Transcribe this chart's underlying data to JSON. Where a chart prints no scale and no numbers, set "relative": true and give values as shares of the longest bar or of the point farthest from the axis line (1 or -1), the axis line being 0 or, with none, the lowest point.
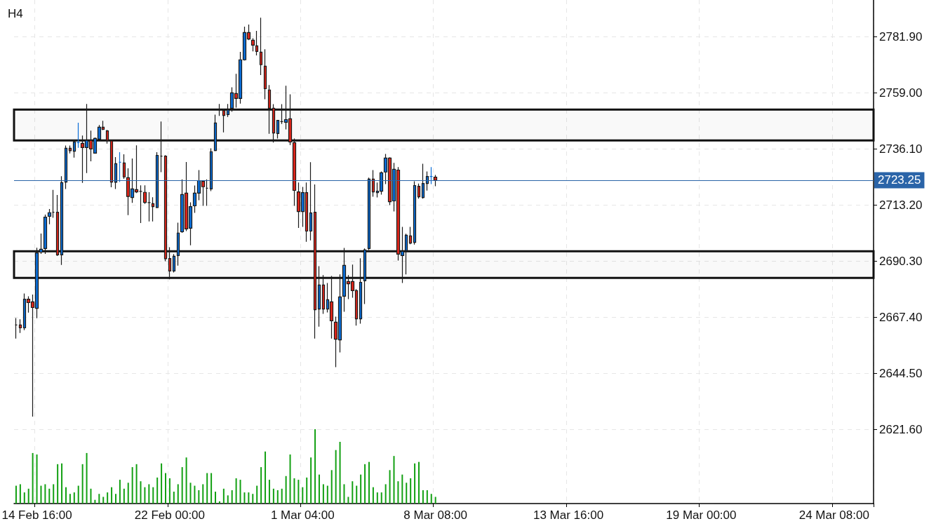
{
  "chart_data": [
    {
      "type": "candlestick",
      "title": "H4",
      "categories": [
        null,
        null,
        null,
        null,
        null,
        "14 Feb 16:00",
        null,
        null,
        null,
        null,
        null,
        null,
        null,
        null,
        null,
        null,
        null,
        null,
        null,
        null,
        null,
        null,
        null,
        null,
        null,
        null,
        null,
        null,
        null,
        null,
        null,
        null,
        null,
        null,
        null,
        null,
        null,
        "22 Feb 00:00",
        null,
        null,
        null,
        null,
        null,
        null,
        null,
        null,
        null,
        null,
        null,
        null,
        null,
        null,
        null,
        null,
        null,
        null,
        null,
        null,
        null,
        null,
        null,
        null,
        null,
        null,
        null,
        null,
        null,
        null,
        null,
        "1 Mar 04:00",
        null,
        null,
        null,
        null,
        null,
        null,
        null,
        null,
        null,
        null,
        null,
        null,
        null,
        null,
        null,
        null,
        null,
        null,
        null,
        null,
        null,
        null,
        null,
        null,
        null,
        null,
        null,
        null,
        null,
        null,
        null,
        "8 Mar 08:00",
        null,
        null,
        null,
        null,
        null,
        null,
        null,
        null,
        null,
        null,
        null,
        null,
        null,
        null,
        null,
        null,
        null,
        null,
        null,
        null,
        null,
        null,
        null,
        null,
        null,
        null,
        null,
        null,
        null,
        null,
        null,
        "13 Mar 16:00",
        null,
        null,
        null,
        null,
        null,
        null,
        null,
        null,
        null,
        null,
        null,
        null,
        null,
        null,
        null,
        null,
        null,
        null,
        null,
        null,
        null,
        null,
        null,
        null,
        null,
        null,
        null,
        null,
        null,
        null,
        null,
        "19 Mar 00:00",
        null,
        null,
        null,
        null,
        null,
        null,
        null,
        null,
        null,
        null,
        null,
        null,
        null,
        null,
        null,
        null,
        null,
        null,
        null,
        null,
        null,
        null,
        null,
        null,
        null,
        null,
        null,
        null,
        null,
        null,
        null,
        "24 Mar 08:00",
        null,
        null,
        null,
        null,
        null,
        null,
        null,
        null,
        null
      ],
      "ohlc": [
        [
          2664.2,
          2667.0,
          2658.6,
          2664.2
        ],
        [
          2664.2,
          2666.5,
          2660.9,
          2663.0
        ],
        [
          2663.0,
          2677.0,
          2662.1,
          2674.7
        ],
        [
          2674.7,
          2675.9,
          2669.2,
          2673.3
        ],
        [
          2673.6,
          2676.6,
          2626.8,
          2671.3
        ],
        [
          2671.0,
          2695.7,
          2666.9,
          2693.6
        ],
        [
          2693.9,
          2701.5,
          2693.2,
          2695.1
        ],
        [
          2695.4,
          2709.2,
          2693.2,
          2708.2
        ],
        [
          2708.5,
          2711.5,
          2705.3,
          2710.0
        ],
        [
          2710.2,
          2719.3,
          2707.9,
          2710.2
        ],
        [
          2710.2,
          2717.2,
          2692.3,
          2692.8
        ],
        [
          2692.8,
          2724.9,
          2688.7,
          2722.3
        ],
        [
          2722.5,
          2737.4,
          2719.7,
          2736.3
        ],
        [
          2736.3,
          2737.4,
          2734.2,
          2735.3
        ],
        [
          2735.1,
          2739.5,
          2732.5,
          2738.9
        ],
        [
          2738.6,
          2746.7,
          2736.5,
          2738.6
        ],
        [
          2738.3,
          2741.5,
          2722.2,
          2736.6
        ],
        [
          2736.6,
          2754.4,
          2726.2,
          2739.5
        ],
        [
          2739.5,
          2743.5,
          2731.0,
          2736.0
        ],
        [
          2734.3,
          2740.7,
          2734.3,
          2740.3
        ],
        [
          2740.0,
          2745.8,
          2740.0,
          2744.9
        ],
        [
          2744.9,
          2747.5,
          2743.7,
          2744.0
        ],
        [
          2743.4,
          2743.8,
          2738.2,
          2739.5
        ],
        [
          2739.3,
          2739.5,
          2720.4,
          2722.5
        ],
        [
          2722.4,
          2732.7,
          2719.7,
          2730.0
        ],
        [
          2730.6,
          2734.7,
          2722.5,
          2730.6
        ],
        [
          2730.3,
          2733.8,
          2723.8,
          2724.6
        ],
        [
          2724.3,
          2728.1,
          2709.0,
          2716.6
        ],
        [
          2716.2,
          2732.1,
          2714.0,
          2719.7
        ],
        [
          2719.4,
          2737.5,
          2718.0,
          2718.5
        ],
        [
          2718.7,
          2721.2,
          2705.8,
          2718.7
        ],
        [
          2718.3,
          2721.2,
          2713.6,
          2714.2
        ],
        [
          2714.1,
          2718.4,
          2706.4,
          2714.1
        ],
        [
          2713.7,
          2716.3,
          2706.4,
          2712.5
        ],
        [
          2712.1,
          2734.7,
          2711.9,
          2733.4
        ],
        [
          2733.1,
          2747.2,
          2726.5,
          2733.1
        ],
        [
          2733.1,
          2733.5,
          2690.2,
          2691.2
        ],
        [
          2691.3,
          2695.9,
          2682.8,
          2686.2
        ],
        [
          2686.2,
          2693.1,
          2685.6,
          2692.2
        ],
        [
          2692.5,
          2705.9,
          2688.4,
          2701.7
        ],
        [
          2702.2,
          2723.6,
          2701.8,
          2717.4
        ],
        [
          2718.0,
          2730.7,
          2702.5,
          2703.4
        ],
        [
          2703.7,
          2714.2,
          2696.7,
          2712.5
        ],
        [
          2712.8,
          2721.1,
          2709.9,
          2718.0
        ],
        [
          2718.0,
          2727.4,
          2715.1,
          2723.1
        ],
        [
          2722.8,
          2723.1,
          2712.8,
          2720.6
        ],
        [
          2720.0,
          2723.6,
          2712.8,
          2720.0
        ],
        [
          2719.7,
          2736.3,
          2718.8,
          2734.9
        ],
        [
          2735.4,
          2750.0,
          2735.1,
          2746.6
        ],
        [
          2752.0,
          2754.4,
          2749.5,
          2752.0
        ],
        [
          2751.7,
          2752.4,
          2742.8,
          2749.7
        ],
        [
          2750.0,
          2754.4,
          2749.1,
          2752.0
        ],
        [
          2752.6,
          2761.2,
          2751.2,
          2758.9
        ],
        [
          2758.6,
          2766.7,
          2752.9,
          2756.6
        ],
        [
          2756.6,
          2775.6,
          2754.5,
          2772.4
        ],
        [
          2772.4,
          2785.9,
          2772.1,
          2783.5
        ],
        [
          2783.5,
          2786.8,
          2780.4,
          2780.9
        ],
        [
          2780.4,
          2781.2,
          2775.8,
          2778.4
        ],
        [
          2778.1,
          2784.2,
          2774.2,
          2775.8
        ],
        [
          2775.5,
          2789.6,
          2766.2,
          2770.4
        ],
        [
          2769.8,
          2776.7,
          2756.3,
          2760.6
        ],
        [
          2760.1,
          2762.1,
          2742.2,
          2752.6
        ],
        [
          2752.6,
          2754.3,
          2738.6,
          2742.5
        ],
        [
          2742.3,
          2747.7,
          2740.3,
          2747.7
        ],
        [
          2747.2,
          2754.3,
          2746.2,
          2747.2
        ],
        [
          2746.9,
          2761.8,
          2744.0,
          2748.0
        ],
        [
          2748.3,
          2758.3,
          2737.6,
          2738.9
        ],
        [
          2738.6,
          2740.3,
          2712.8,
          2719.1
        ],
        [
          2718.5,
          2722.3,
          2703.8,
          2710.5
        ],
        [
          2710.5,
          2720.5,
          2704.2,
          2718.2
        ],
        [
          2718.2,
          2722.3,
          2698.1,
          2702.5
        ],
        [
          2702.5,
          2730.6,
          2698.7,
          2709.9
        ],
        [
          2710.2,
          2721.5,
          2658.6,
          2670.4
        ],
        [
          2670.7,
          2688.2,
          2663.5,
          2680.5
        ],
        [
          2680.5,
          2684.5,
          2668.7,
          2670.7
        ],
        [
          2670.7,
          2681.3,
          2669.3,
          2674.5
        ],
        [
          2673.6,
          2684.2,
          2658.6,
          2665.9
        ],
        [
          2665.3,
          2667.6,
          2647.0,
          2658.4
        ],
        [
          2658.1,
          2684.8,
          2653.0,
          2675.6
        ],
        [
          2675.9,
          2695.6,
          2669.6,
          2688.5
        ],
        [
          2681.9,
          2684.5,
          2674.7,
          2681.0
        ],
        [
          2681.9,
          2688.8,
          2675.3,
          2678.2
        ],
        [
          2678.2,
          2678.8,
          2663.9,
          2666.7
        ],
        [
          2666.7,
          2691.4,
          2664.7,
          2681.6
        ],
        [
          2682.2,
          2695.4,
          2672.7,
          2694.8
        ],
        [
          2695.4,
          2724.3,
          2694.8,
          2723.7
        ],
        [
          2723.7,
          2727.4,
          2716.5,
          2718.5
        ],
        [
          2718.2,
          2722.3,
          2716.2,
          2718.8
        ],
        [
          2718.8,
          2726.8,
          2717.4,
          2726.3
        ],
        [
          2726.6,
          2734.0,
          2721.7,
          2732.3
        ],
        [
          2732.3,
          2732.6,
          2713.1,
          2714.5
        ],
        [
          2714.8,
          2730.3,
          2710.5,
          2727.7
        ],
        [
          2727.4,
          2728.6,
          2690.5,
          2693.1
        ],
        [
          2692.5,
          2704.2,
          2681.3,
          2694.2
        ],
        [
          2694.5,
          2701.4,
          2684.8,
          2700.8
        ],
        [
          2700.5,
          2704.2,
          2697.1,
          2697.6
        ],
        [
          2697.9,
          2722.8,
          2697.0,
          2721.1
        ],
        [
          2720.8,
          2721.9,
          2715.7,
          2716.5
        ],
        [
          2716.2,
          2730.0,
          2715.7,
          2721.9
        ],
        [
          2721.9,
          2726.8,
          2719.0,
          2724.8
        ],
        [
          2724.8,
          2728.6,
          2721.7,
          2724.8
        ],
        [
          2724.5,
          2725.4,
          2720.8,
          2723.25
        ],
        null,
        null,
        null,
        null,
        null,
        null,
        null,
        null,
        null,
        null,
        null,
        null,
        null,
        null,
        null,
        null,
        null,
        null,
        null,
        null,
        null,
        null,
        null,
        null,
        null,
        null,
        null,
        null,
        null,
        null,
        null,
        null,
        null,
        null,
        null,
        null,
        null,
        null,
        null,
        null,
        null,
        null,
        null,
        null,
        null,
        null,
        null,
        null,
        null,
        null,
        null,
        null,
        null,
        null,
        null,
        null,
        null,
        null,
        null,
        null,
        null,
        null,
        null,
        null,
        null,
        null,
        null,
        null,
        null,
        null,
        null,
        null,
        null,
        null,
        null,
        null,
        null,
        null,
        null,
        null,
        null,
        null,
        null,
        null,
        null,
        null,
        null,
        null,
        null,
        null,
        null,
        null,
        null,
        null,
        null,
        null,
        null,
        null,
        null,
        null,
        null,
        null,
        null,
        null,
        null
      ],
      "colors": [
        "#1a1a1a",
        "#e0261b",
        "#0b6ed8",
        "#e0261b",
        "#e0261b",
        "#0b6ed8",
        "#0b6ed8",
        "#0b6ed8",
        "#0b6ed8",
        "#1a1a1a",
        "#e0261b",
        "#0b6ed8",
        "#0b6ed8",
        "#e0261b",
        "#0b6ed8",
        "#0b6ed8",
        "#e0261b",
        "#0b6ed8",
        "#e0261b",
        "#0b6ed8",
        "#0b6ed8",
        "#e0261b",
        "#e0261b",
        "#e0261b",
        "#0b6ed8",
        "#0b6ed8",
        "#e0261b",
        "#e0261b",
        "#0b6ed8",
        "#e0261b",
        "#1a1a1a",
        "#e0261b",
        "#1a1a1a",
        "#e0261b",
        "#0b6ed8",
        "#1a1a1a",
        "#e0261b",
        "#e0261b",
        "#0b6ed8",
        "#0b6ed8",
        "#0b6ed8",
        "#e0261b",
        "#0b6ed8",
        "#0b6ed8",
        "#0b6ed8",
        "#e0261b",
        "#1a1a1a",
        "#0b6ed8",
        "#0b6ed8",
        "#1a1a1a",
        "#e0261b",
        "#0b6ed8",
        "#0b6ed8",
        "#e0261b",
        "#0b6ed8",
        "#0b6ed8",
        "#e0261b",
        "#e0261b",
        "#e0261b",
        "#e0261b",
        "#e0261b",
        "#e0261b",
        "#e0261b",
        "#0b6ed8",
        "#1a1a1a",
        "#0b6ed8",
        "#e0261b",
        "#e0261b",
        "#e0261b",
        "#0b6ed8",
        "#e0261b",
        "#0b6ed8",
        "#e0261b",
        "#0b6ed8",
        "#e0261b",
        "#0b6ed8",
        "#e0261b",
        "#e0261b",
        "#0b6ed8",
        "#0b6ed8",
        "#e0261b",
        "#e0261b",
        "#e0261b",
        "#0b6ed8",
        "#0b6ed8",
        "#0b6ed8",
        "#e0261b",
        "#0b6ed8",
        "#0b6ed8",
        "#0b6ed8",
        "#e0261b",
        "#0b6ed8",
        "#e0261b",
        "#0b6ed8",
        "#0b6ed8",
        "#e0261b",
        "#0b6ed8",
        "#e0261b",
        "#0b6ed8",
        "#0b6ed8",
        "#0b6ed8",
        "#e0261b",
        null,
        null,
        null,
        null,
        null,
        null,
        null,
        null,
        null,
        null,
        null,
        null,
        null,
        null,
        null,
        null,
        null,
        null,
        null,
        null,
        null,
        null,
        null,
        null,
        null,
        null,
        null,
        null,
        null,
        null,
        null,
        null,
        null,
        null,
        null,
        null,
        null,
        null,
        null,
        null,
        null,
        null,
        null,
        null,
        null,
        null,
        null,
        null,
        null,
        null,
        null,
        null,
        null,
        null,
        null,
        null,
        null,
        null,
        null,
        null,
        null,
        null,
        null,
        null,
        null,
        null,
        null,
        null,
        null,
        null,
        null,
        null,
        null,
        null,
        null,
        null,
        null,
        null,
        null,
        null,
        null,
        null,
        null,
        null,
        null,
        null,
        null,
        null,
        null,
        null,
        null,
        null,
        null,
        null,
        null,
        null,
        null,
        null,
        null,
        null,
        null,
        null,
        null,
        null,
        null
      ],
      "ylim": [
        2591.3,
        2796.8
      ],
      "yticks": [
        {
          "value": 2621.6,
          "label": "2621.60"
        },
        {
          "value": 2644.5,
          "label": "2644.50"
        },
        {
          "value": 2667.4,
          "label": "2667.40"
        },
        {
          "value": 2690.3,
          "label": "2690.30"
        },
        {
          "value": 2713.2,
          "label": "2713.20"
        },
        {
          "value": 2736.1,
          "label": "2736.10"
        },
        {
          "value": 2759,
          "label": "2759.00"
        },
        {
          "value": 2781.9,
          "label": "2781.90"
        }
      ],
      "ref_lines": [
        {
          "axis": "y",
          "value": 2723.25,
          "label": "2723.25",
          "color": "#2a64a8"
        }
      ],
      "bands": [
        {
          "axis": "y",
          "from": 2739.5,
          "to": 2752.1
        },
        {
          "axis": "y",
          "from": 2683.4,
          "to": 2694.3
        }
      ],
      "grid": true
    },
    {
      "type": "bar",
      "relative": true,
      "color": "#12a012",
      "categories": [
        null,
        null,
        null,
        null,
        null,
        null,
        null,
        null,
        null,
        null,
        null,
        null,
        null,
        null,
        null,
        null,
        null,
        null,
        null,
        null,
        null,
        null,
        null,
        null,
        null,
        null,
        null,
        null,
        null,
        null,
        null,
        null,
        null,
        null,
        null,
        null,
        null,
        null,
        null,
        null,
        null,
        null,
        null,
        null,
        null,
        null,
        null,
        null,
        null,
        null,
        null,
        null,
        null,
        null,
        null,
        null,
        null,
        null,
        null,
        null,
        null,
        null,
        null,
        null,
        null,
        null,
        null,
        null,
        null,
        null,
        null,
        null,
        null,
        null,
        null,
        null,
        null,
        null,
        null,
        null,
        null,
        null,
        null,
        null,
        null,
        null,
        null,
        null,
        null,
        null,
        null,
        null,
        null,
        null,
        null,
        null,
        null,
        null,
        null,
        null,
        null,
        null,
        null,
        null,
        null,
        null,
        null,
        null,
        null,
        null,
        null,
        null,
        null,
        null,
        null,
        null,
        null,
        null,
        null,
        null,
        null,
        null,
        null,
        null,
        null,
        null,
        null,
        null,
        null,
        null,
        null,
        null,
        null,
        null,
        null,
        null,
        null,
        null,
        null,
        null,
        null,
        null,
        null,
        null,
        null,
        null,
        null,
        null,
        null,
        null,
        null,
        null,
        null,
        null,
        null,
        null,
        null,
        null,
        null,
        null,
        null,
        null,
        null,
        null,
        null,
        null,
        null,
        null,
        null,
        null,
        null,
        null,
        null,
        null,
        null,
        null,
        null,
        null,
        null,
        null,
        null,
        null,
        null,
        null,
        null,
        null,
        null,
        null,
        null,
        null,
        null,
        null,
        null,
        null,
        null,
        null,
        null,
        null,
        null,
        null,
        null,
        null,
        null,
        null,
        null,
        null,
        null
      ],
      "values": [
        0.24,
        0.26,
        0.15,
        0.2,
        0.68,
        0.66,
        0.24,
        0.26,
        0.2,
        0.26,
        0.53,
        0.54,
        0.22,
        0.13,
        0.15,
        0.24,
        0.53,
        0.68,
        0.2,
        0.05,
        0.13,
        0.09,
        0.15,
        0.22,
        0.13,
        0.32,
        0.2,
        0.28,
        0.49,
        0.53,
        0.3,
        0.22,
        0.26,
        0.22,
        0.35,
        0.54,
        0.41,
        0.34,
        0.16,
        0.26,
        0.49,
        0.62,
        0.28,
        0.24,
        0.18,
        0.26,
        0.41,
        0.41,
        0.16,
        0.03,
        0.2,
        0.11,
        0.18,
        0.34,
        0.32,
        0.15,
        0.15,
        0.13,
        0.24,
        0.49,
        0.7,
        0.32,
        0.2,
        0.18,
        0.2,
        0.37,
        0.66,
        0.34,
        0.32,
        0.22,
        0.35,
        0.62,
        1,
        0.39,
        0.26,
        0.24,
        0.45,
        0.72,
        0.83,
        0.26,
        0.09,
        0.3,
        0.24,
        0.39,
        0.53,
        0.56,
        0.22,
        0.15,
        0.15,
        0.26,
        0.45,
        0.64,
        0.3,
        0.39,
        0.28,
        0.34,
        0.54,
        0.56,
        0.18,
        0.18,
        0.13,
        0.09,
        null,
        null,
        null,
        null,
        null,
        null,
        null,
        null,
        null,
        null,
        null,
        null,
        null,
        null,
        null,
        null,
        null,
        null,
        null,
        null,
        null,
        null,
        null,
        null,
        null,
        null,
        null,
        null,
        null,
        null,
        null,
        null,
        null,
        null,
        null,
        null,
        null,
        null,
        null,
        null,
        null,
        null,
        null,
        null,
        null,
        null,
        null,
        null,
        null,
        null,
        null,
        null,
        null,
        null,
        null,
        null,
        null,
        null,
        null,
        null,
        null,
        null,
        null,
        null,
        null,
        null,
        null,
        null,
        null,
        null,
        null,
        null,
        null,
        null,
        null,
        null,
        null,
        null,
        null,
        null,
        null,
        null,
        null,
        null,
        null,
        null,
        null,
        null,
        null,
        null,
        null,
        null,
        null,
        null,
        null,
        null,
        null,
        null,
        null,
        null,
        null,
        null,
        null,
        null,
        null
      ]
    }
  ]
}
